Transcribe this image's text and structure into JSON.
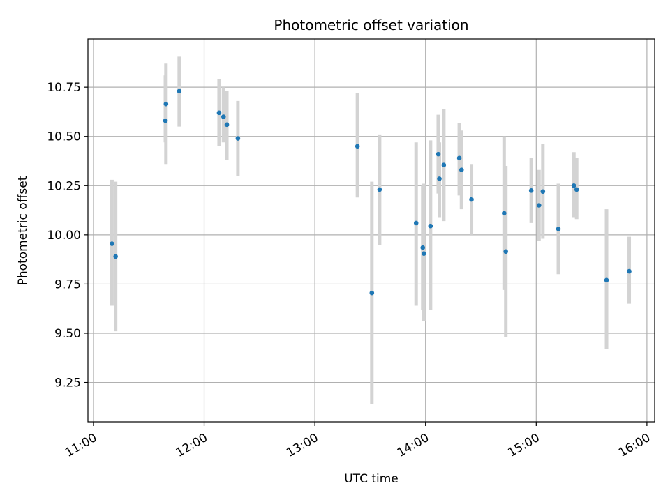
{
  "chart_data": {
    "type": "scatter",
    "title": "Photometric offset variation",
    "xlabel": "UTC time",
    "ylabel": "Photometric offset",
    "grid": true,
    "xlim_hours": [
      10.95,
      16.07
    ],
    "ylim": [
      9.05,
      10.995
    ],
    "x_ticks": [
      {
        "value": 11,
        "label": "11:00"
      },
      {
        "value": 12,
        "label": "12:00"
      },
      {
        "value": 13,
        "label": "13:00"
      },
      {
        "value": 14,
        "label": "14:00"
      },
      {
        "value": 15,
        "label": "15:00"
      },
      {
        "value": 16,
        "label": "16:00"
      }
    ],
    "y_ticks": [
      {
        "value": 9.25,
        "label": "9.25"
      },
      {
        "value": 9.5,
        "label": "9.50"
      },
      {
        "value": 9.75,
        "label": "9.75"
      },
      {
        "value": 10.0,
        "label": "10.00"
      },
      {
        "value": 10.25,
        "label": "10.25"
      },
      {
        "value": 10.5,
        "label": "10.50"
      },
      {
        "value": 10.75,
        "label": "10.75"
      }
    ],
    "series": [
      {
        "name": "offset",
        "marker_color": "#1f77b4",
        "errorbar_color": "#d3d3d3",
        "points": [
          {
            "time": "11:10",
            "x": 11.167,
            "y": 9.955,
            "ymin": 9.64,
            "ymax": 10.28
          },
          {
            "time": "11:12",
            "x": 11.2,
            "y": 9.89,
            "ymin": 9.51,
            "ymax": 10.27
          },
          {
            "time": "11:39",
            "x": 11.65,
            "y": 10.58,
            "ymin": 10.47,
            "ymax": 10.81
          },
          {
            "time": "11:39",
            "x": 11.655,
            "y": 10.665,
            "ymin": 10.36,
            "ymax": 10.87
          },
          {
            "time": "11:46",
            "x": 11.775,
            "y": 10.73,
            "ymin": 10.55,
            "ymax": 10.905
          },
          {
            "time": "12:08",
            "x": 12.135,
            "y": 10.62,
            "ymin": 10.45,
            "ymax": 10.79
          },
          {
            "time": "12:10",
            "x": 12.175,
            "y": 10.6,
            "ymin": 10.47,
            "ymax": 10.75
          },
          {
            "time": "12:12",
            "x": 12.205,
            "y": 10.56,
            "ymin": 10.38,
            "ymax": 10.73
          },
          {
            "time": "12:18",
            "x": 12.305,
            "y": 10.49,
            "ymin": 10.3,
            "ymax": 10.68
          },
          {
            "time": "13:23",
            "x": 13.385,
            "y": 10.45,
            "ymin": 10.19,
            "ymax": 10.72
          },
          {
            "time": "13:31",
            "x": 13.515,
            "y": 9.705,
            "ymin": 9.14,
            "ymax": 10.27
          },
          {
            "time": "13:35",
            "x": 13.585,
            "y": 10.23,
            "ymin": 9.95,
            "ymax": 10.51
          },
          {
            "time": "13:55",
            "x": 13.915,
            "y": 10.06,
            "ymin": 9.64,
            "ymax": 10.47
          },
          {
            "time": "13:58",
            "x": 13.975,
            "y": 9.935,
            "ymin": 9.62,
            "ymax": 10.25
          },
          {
            "time": "13:59",
            "x": 13.985,
            "y": 9.905,
            "ymin": 9.56,
            "ymax": 10.26
          },
          {
            "time": "14:02",
            "x": 14.045,
            "y": 10.045,
            "ymin": 9.62,
            "ymax": 10.48
          },
          {
            "time": "14:07",
            "x": 14.115,
            "y": 10.41,
            "ymin": 10.21,
            "ymax": 10.61
          },
          {
            "time": "14:07",
            "x": 14.125,
            "y": 10.285,
            "ymin": 10.09,
            "ymax": 10.47
          },
          {
            "time": "14:09",
            "x": 14.165,
            "y": 10.355,
            "ymin": 10.07,
            "ymax": 10.64
          },
          {
            "time": "14:18",
            "x": 14.305,
            "y": 10.39,
            "ymin": 10.2,
            "ymax": 10.57
          },
          {
            "time": "14:19",
            "x": 14.325,
            "y": 10.33,
            "ymin": 10.13,
            "ymax": 10.53
          },
          {
            "time": "14:25",
            "x": 14.415,
            "y": 10.18,
            "ymin": 10.0,
            "ymax": 10.36
          },
          {
            "time": "14:42",
            "x": 14.71,
            "y": 10.11,
            "ymin": 9.72,
            "ymax": 10.5
          },
          {
            "time": "14:43",
            "x": 14.725,
            "y": 9.915,
            "ymin": 9.48,
            "ymax": 10.35
          },
          {
            "time": "14:57",
            "x": 14.955,
            "y": 10.225,
            "ymin": 10.06,
            "ymax": 10.39
          },
          {
            "time": "15:01",
            "x": 15.025,
            "y": 10.15,
            "ymin": 9.97,
            "ymax": 10.33
          },
          {
            "time": "15:03",
            "x": 15.06,
            "y": 10.22,
            "ymin": 9.98,
            "ymax": 10.46
          },
          {
            "time": "15:12",
            "x": 15.2,
            "y": 10.03,
            "ymin": 9.8,
            "ymax": 10.26
          },
          {
            "time": "15:20",
            "x": 15.34,
            "y": 10.25,
            "ymin": 10.09,
            "ymax": 10.42
          },
          {
            "time": "15:21",
            "x": 15.365,
            "y": 10.23,
            "ymin": 10.08,
            "ymax": 10.39
          },
          {
            "time": "15:38",
            "x": 15.635,
            "y": 9.77,
            "ymin": 9.42,
            "ymax": 10.13
          },
          {
            "time": "15:50",
            "x": 15.84,
            "y": 9.815,
            "ymin": 9.65,
            "ymax": 9.99
          }
        ]
      }
    ]
  }
}
